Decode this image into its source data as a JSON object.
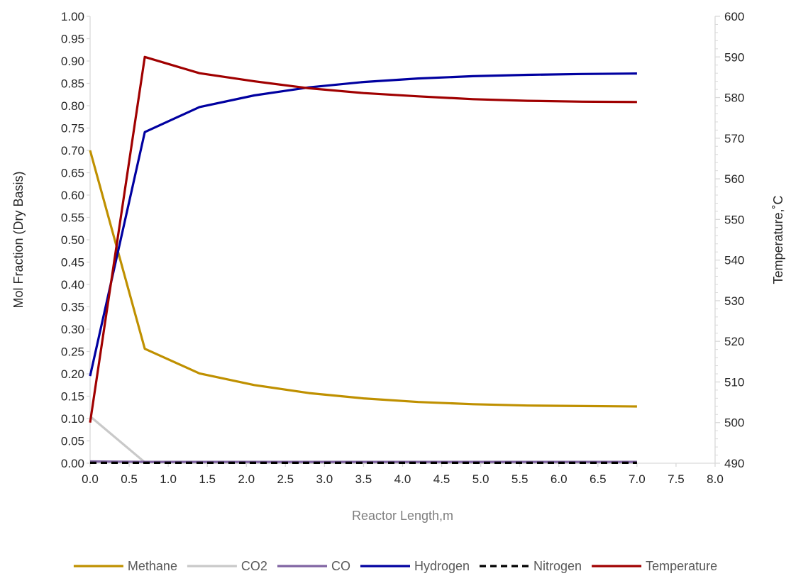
{
  "chart_data": {
    "type": "line",
    "title": "",
    "xlabel": "Reactor Length,m",
    "ylabel": "Mol Fraction (Dry Basis)",
    "y2label": "Temperature,˚C",
    "xlim": [
      0,
      8
    ],
    "ylim": [
      0,
      1
    ],
    "y2lim": [
      490,
      600
    ],
    "x_ticks": [
      "0.0",
      "0.5",
      "1.0",
      "1.5",
      "2.0",
      "2.5",
      "3.0",
      "3.5",
      "4.0",
      "4.5",
      "5.0",
      "5.5",
      "6.0",
      "6.5",
      "7.0",
      "7.5",
      "8.0"
    ],
    "y_ticks": [
      "0.00",
      "0.05",
      "0.10",
      "0.15",
      "0.20",
      "0.25",
      "0.30",
      "0.35",
      "0.40",
      "0.45",
      "0.50",
      "0.55",
      "0.60",
      "0.65",
      "0.70",
      "0.75",
      "0.80",
      "0.85",
      "0.90",
      "0.95",
      "1.00"
    ],
    "y2_ticks": [
      "490",
      "500",
      "510",
      "520",
      "530",
      "540",
      "550",
      "560",
      "570",
      "580",
      "590",
      "600"
    ],
    "grid": false,
    "legend_position": "bottom",
    "x": [
      0,
      0.7,
      1.4,
      2.1,
      2.8,
      3.5,
      4.2,
      4.9,
      5.6,
      6.3,
      7.0
    ],
    "series": [
      {
        "name": "Methane",
        "axis": "left",
        "color": "#bf9000",
        "dash": "solid",
        "values": [
          0.7,
          0.256,
          0.201,
          0.175,
          0.157,
          0.145,
          0.137,
          0.132,
          0.129,
          0.128,
          0.127
        ]
      },
      {
        "name": "CO2",
        "axis": "left",
        "color": "#c9c9c9",
        "dash": "solid",
        "values": [
          0.105,
          0.002,
          0.001,
          0.001,
          0.001,
          0.001,
          0.001,
          0.001,
          0.001,
          0.001,
          0.001
        ]
      },
      {
        "name": "CO",
        "axis": "left",
        "color": "#8064a2",
        "dash": "solid",
        "values": [
          0.004,
          0.003,
          0.003,
          0.003,
          0.003,
          0.003,
          0.003,
          0.003,
          0.003,
          0.003,
          0.003
        ]
      },
      {
        "name": "Hydrogen",
        "axis": "left",
        "color": "#0000a0",
        "dash": "solid",
        "values": [
          0.195,
          0.741,
          0.797,
          0.823,
          0.841,
          0.853,
          0.861,
          0.866,
          0.869,
          0.871,
          0.872
        ]
      },
      {
        "name": "Nitrogen",
        "axis": "left",
        "color": "#000000",
        "dash": "dashed",
        "values": [
          0.001,
          0.001,
          0.001,
          0.001,
          0.001,
          0.001,
          0.001,
          0.001,
          0.001,
          0.001,
          0.001
        ]
      },
      {
        "name": "Temperature",
        "axis": "right",
        "color": "#a00000",
        "dash": "solid",
        "values": [
          500,
          590,
          586,
          584,
          582.3,
          581.1,
          580.3,
          579.6,
          579.2,
          579.0,
          578.9
        ]
      }
    ]
  }
}
